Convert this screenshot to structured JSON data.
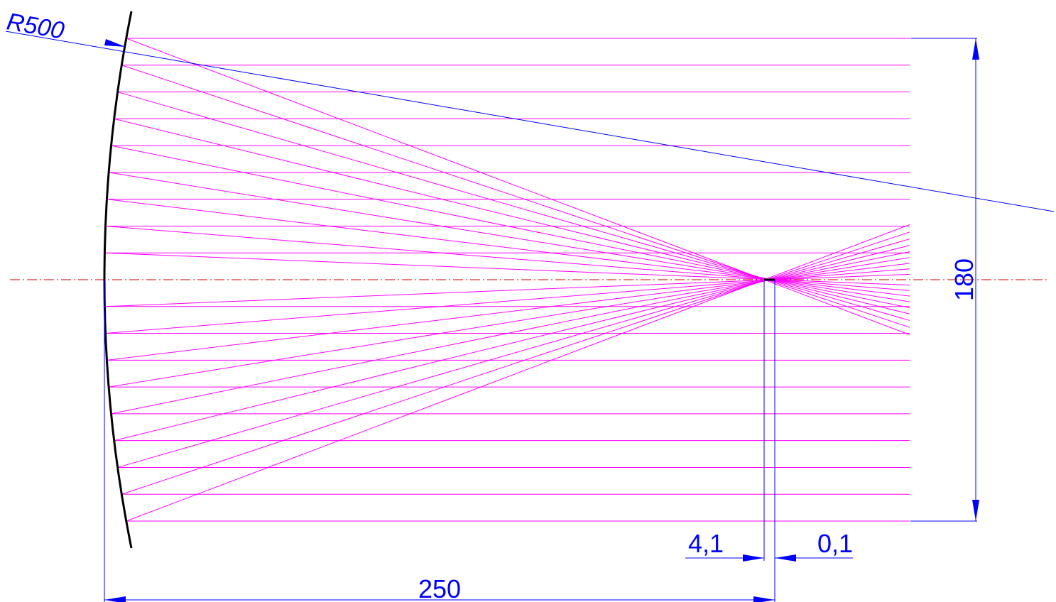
{
  "labels": {
    "radius": "R500",
    "height": "180",
    "length": "250",
    "offset_left": "4,1",
    "offset_right": "0,1"
  },
  "colors": {
    "rays": "#ff00ff",
    "dimensions": "#0000ff",
    "axis": "#cc0000",
    "mirror": "#000000"
  },
  "optics": {
    "mirror_radius": 500,
    "aperture_height": 180,
    "focal_distance": 250,
    "ray_count": 19
  }
}
